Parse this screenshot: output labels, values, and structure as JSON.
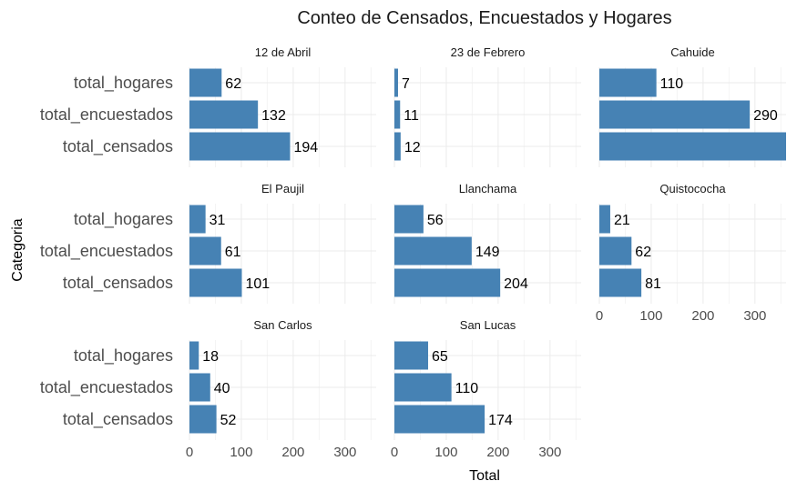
{
  "chart_data": {
    "type": "bar",
    "orientation": "horizontal",
    "faceted": true,
    "title": "Conteo de Censados, Encuestados y Hogares",
    "xlabel": "Total",
    "ylabel": "Categoria",
    "categories": [
      "total_hogares",
      "total_encuestados",
      "total_censados"
    ],
    "xlim": [
      0,
      360
    ],
    "xticks": [
      0,
      100,
      200,
      300
    ],
    "bar_color": "#4682B4",
    "grid": true,
    "facets": [
      {
        "name": "12 de Abril",
        "values": [
          62,
          132,
          194
        ]
      },
      {
        "name": "23 de Febrero",
        "values": [
          7,
          11,
          12
        ]
      },
      {
        "name": "Cahuide",
        "values": [
          110,
          290,
          363
        ]
      },
      {
        "name": "El Paujil",
        "values": [
          31,
          61,
          101
        ]
      },
      {
        "name": "Llanchama",
        "values": [
          56,
          149,
          204
        ]
      },
      {
        "name": "Quistococha",
        "values": [
          21,
          62,
          81
        ]
      },
      {
        "name": "San Carlos",
        "values": [
          18,
          40,
          52
        ]
      },
      {
        "name": "San Lucas",
        "values": [
          65,
          110,
          174
        ]
      }
    ]
  }
}
